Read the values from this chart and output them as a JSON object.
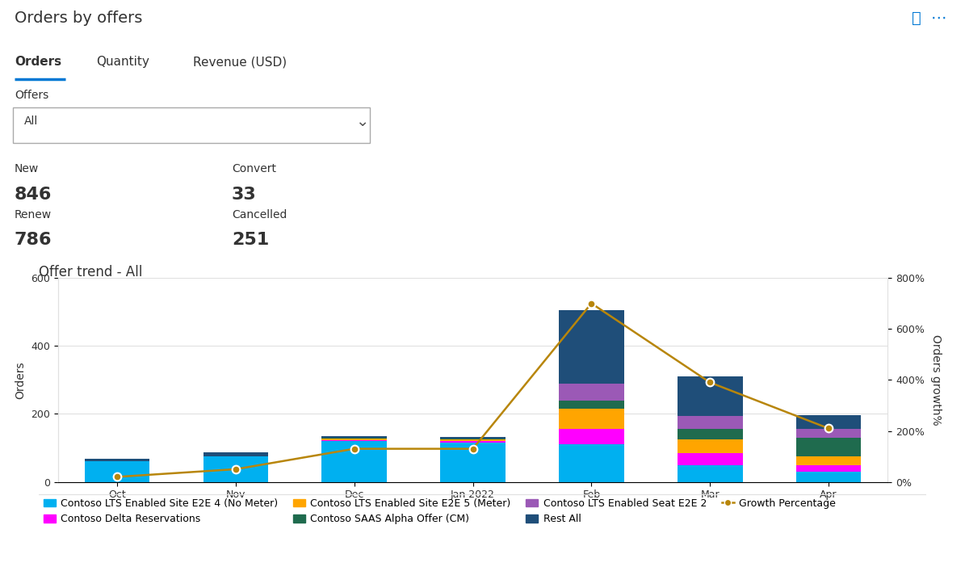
{
  "title": "Orders by offers",
  "chart_subtitle": "Offer trend - All",
  "tabs": [
    "Orders",
    "Quantity",
    "Revenue (USD)"
  ],
  "active_tab": "Orders",
  "filter_label": "Offers",
  "filter_value": "All",
  "stats": [
    {
      "label": "New",
      "value": "846"
    },
    {
      "label": "Convert",
      "value": "33"
    },
    {
      "label": "Renew",
      "value": "786"
    },
    {
      "label": "Cancelled",
      "value": "251"
    }
  ],
  "months": [
    "Oct",
    "Nov",
    "Dec",
    "Jan 2022",
    "Feb",
    "Mar",
    "Apr"
  ],
  "bar_data": {
    "contoso_lts_e2e4": [
      60,
      75,
      120,
      115,
      110,
      50,
      30
    ],
    "contoso_delta": [
      0,
      0,
      2,
      5,
      45,
      35,
      20
    ],
    "contoso_lts_e2e5": [
      0,
      0,
      5,
      5,
      60,
      40,
      25
    ],
    "contoso_saas": [
      0,
      0,
      2,
      3,
      25,
      30,
      55
    ],
    "contoso_seat": [
      0,
      0,
      0,
      0,
      50,
      40,
      25
    ],
    "rest_all": [
      8,
      12,
      5,
      5,
      215,
      115,
      42
    ]
  },
  "growth_pct": [
    20,
    50,
    130,
    130,
    700,
    390,
    210
  ],
  "colors": {
    "contoso_lts_e2e4": "#00B0F0",
    "contoso_delta": "#FF00FF",
    "contoso_lts_e2e5": "#FFA500",
    "contoso_saas": "#1F6B4E",
    "contoso_seat": "#9B59B6",
    "rest_all": "#1F4E79",
    "growth_line": "#B8860B"
  },
  "ylim_left": [
    0,
    600
  ],
  "ylim_right": [
    0,
    800
  ],
  "yticks_left": [
    0,
    200,
    400,
    600
  ],
  "yticks_right": [
    0,
    200,
    400,
    600,
    800
  ],
  "legend_items": [
    {
      "label": "Contoso LTS Enabled Site E2E 4 (No Meter)",
      "color": "#00B0F0"
    },
    {
      "label": "Contoso Delta Reservations",
      "color": "#FF00FF"
    },
    {
      "label": "Contoso LTS Enabled Site E2E 5 (Meter)",
      "color": "#FFA500"
    },
    {
      "label": "Contoso SAAS Alpha Offer (CM)",
      "color": "#1F6B4E"
    },
    {
      "label": "Contoso LTS Enabled Seat E2E 2",
      "color": "#9B59B6"
    },
    {
      "label": "Rest All",
      "color": "#1F4E79"
    },
    {
      "label": "Growth Percentage",
      "color": "#B8860B"
    }
  ],
  "bg_color": "#FFFFFF",
  "grid_color": "#E0E0E0",
  "text_color": "#333333",
  "title_fontsize": 14,
  "axis_fontsize": 10,
  "tick_fontsize": 9,
  "stat_label_fontsize": 10,
  "stat_value_fontsize": 16
}
